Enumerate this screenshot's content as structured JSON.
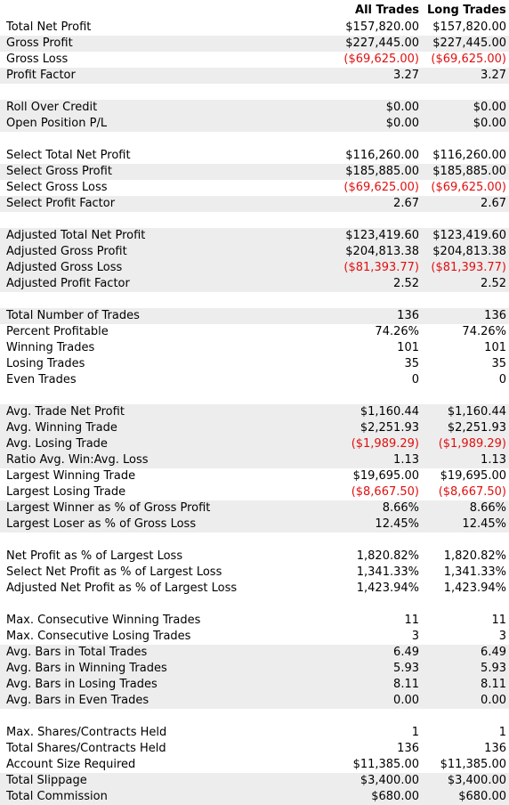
{
  "header": {
    "col1": "All Trades",
    "col2": "Long Trades"
  },
  "groups": [
    [
      {
        "label": "Total Net Profit",
        "all": "$157,820.00",
        "long": "$157,820.00",
        "neg": false
      },
      {
        "label": "Gross Profit",
        "all": "$227,445.00",
        "long": "$227,445.00",
        "neg": false
      },
      {
        "label": "Gross Loss",
        "all": "($69,625.00)",
        "long": "($69,625.00)",
        "neg": true
      },
      {
        "label": "Profit Factor",
        "all": "3.27",
        "long": "3.27",
        "neg": false
      }
    ],
    [
      {
        "label": "Roll Over Credit",
        "all": "$0.00",
        "long": "$0.00",
        "neg": false
      },
      {
        "label": "Open Position P/L",
        "all": "$0.00",
        "long": "$0.00",
        "neg": false
      }
    ],
    [
      {
        "label": "Select Total Net Profit",
        "all": "$116,260.00",
        "long": "$116,260.00",
        "neg": false
      },
      {
        "label": "Select Gross Profit",
        "all": "$185,885.00",
        "long": "$185,885.00",
        "neg": false
      },
      {
        "label": "Select Gross Loss",
        "all": "($69,625.00)",
        "long": "($69,625.00)",
        "neg": true
      },
      {
        "label": "Select Profit Factor",
        "all": "2.67",
        "long": "2.67",
        "neg": false
      }
    ],
    [
      {
        "label": "Adjusted Total Net Profit",
        "all": "$123,419.60",
        "long": "$123,419.60",
        "neg": false
      },
      {
        "label": "Adjusted Gross Profit",
        "all": "$204,813.38",
        "long": "$204,813.38",
        "neg": false
      },
      {
        "label": "Adjusted Gross Loss",
        "all": "($81,393.77)",
        "long": "($81,393.77)",
        "neg": true
      },
      {
        "label": "Adjusted Profit Factor",
        "all": "2.52",
        "long": "2.52",
        "neg": false
      }
    ],
    [
      {
        "label": "Total Number of Trades",
        "all": "136",
        "long": "136",
        "neg": false
      },
      {
        "label": "Percent Profitable",
        "all": "74.26%",
        "long": "74.26%",
        "neg": false
      },
      {
        "label": "Winning Trades",
        "all": "101",
        "long": "101",
        "neg": false
      },
      {
        "label": "Losing Trades",
        "all": "35",
        "long": "35",
        "neg": false
      },
      {
        "label": "Even Trades",
        "all": "0",
        "long": "0",
        "neg": false
      }
    ],
    [
      {
        "label": "Avg. Trade Net Profit",
        "all": "$1,160.44",
        "long": "$1,160.44",
        "neg": false
      },
      {
        "label": "Avg. Winning Trade",
        "all": "$2,251.93",
        "long": "$2,251.93",
        "neg": false
      },
      {
        "label": "Avg. Losing Trade",
        "all": "($1,989.29)",
        "long": "($1,989.29)",
        "neg": true
      },
      {
        "label": "Ratio Avg. Win:Avg. Loss",
        "all": "1.13",
        "long": "1.13",
        "neg": false
      },
      {
        "label": "Largest Winning Trade",
        "all": "$19,695.00",
        "long": "$19,695.00",
        "neg": false
      },
      {
        "label": "Largest Losing Trade",
        "all": "($8,667.50)",
        "long": "($8,667.50)",
        "neg": true
      },
      {
        "label": "Largest Winner as % of Gross Profit",
        "all": "8.66%",
        "long": "8.66%",
        "neg": false
      },
      {
        "label": "Largest Loser as % of Gross Loss",
        "all": "12.45%",
        "long": "12.45%",
        "neg": false
      }
    ],
    [
      {
        "label": "Net Profit as % of Largest Loss",
        "all": "1,820.82%",
        "long": "1,820.82%",
        "neg": false
      },
      {
        "label": "Select Net Profit as % of Largest Loss",
        "all": "1,341.33%",
        "long": "1,341.33%",
        "neg": false
      },
      {
        "label": "Adjusted Net Profit as % of Largest Loss",
        "all": "1,423.94%",
        "long": "1,423.94%",
        "neg": false
      }
    ],
    [
      {
        "label": "Max. Consecutive Winning Trades",
        "all": "11",
        "long": "11",
        "neg": false
      },
      {
        "label": "Max. Consecutive Losing Trades",
        "all": "3",
        "long": "3",
        "neg": false
      },
      {
        "label": "Avg. Bars in Total Trades",
        "all": "6.49",
        "long": "6.49",
        "neg": false
      },
      {
        "label": "Avg. Bars in Winning Trades",
        "all": "5.93",
        "long": "5.93",
        "neg": false
      },
      {
        "label": "Avg. Bars in Losing Trades",
        "all": "8.11",
        "long": "8.11",
        "neg": false
      },
      {
        "label": "Avg. Bars in Even Trades",
        "all": "0.00",
        "long": "0.00",
        "neg": false
      }
    ],
    [
      {
        "label": "Max. Shares/Contracts Held",
        "all": "1",
        "long": "1",
        "neg": false
      },
      {
        "label": "Total Shares/Contracts Held",
        "all": "136",
        "long": "136",
        "neg": false
      },
      {
        "label": "Account Size Required",
        "all": "$11,385.00",
        "long": "$11,385.00",
        "neg": false
      },
      {
        "label": "Total Slippage",
        "all": "$3,400.00",
        "long": "$3,400.00",
        "neg": false
      },
      {
        "label": "Total Commission",
        "all": "$680.00",
        "long": "$680.00",
        "neg": false
      }
    ]
  ],
  "colors": {
    "negative": "#e01010",
    "shade": "#ededed"
  }
}
